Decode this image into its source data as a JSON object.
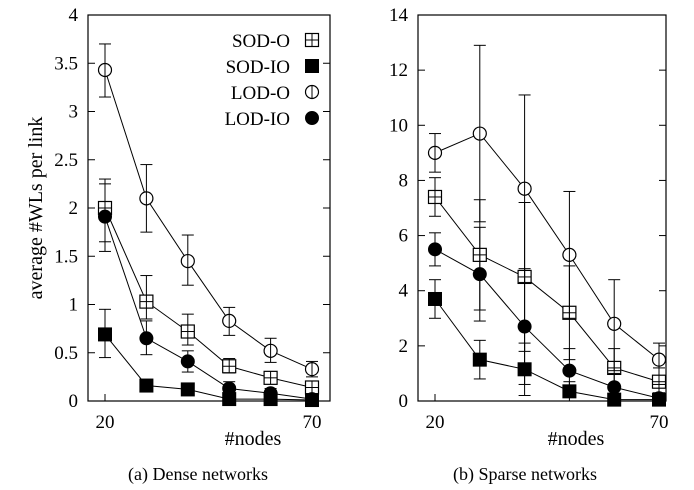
{
  "chart_data": [
    {
      "type": "line",
      "caption": "(a) Dense networks",
      "xlabel": "#nodes",
      "ylabel": "average #WLs per link",
      "xlim": [
        20,
        70
      ],
      "ylim": [
        0,
        4
      ],
      "x_ticks": [
        "20",
        "70"
      ],
      "y_ticks": [
        "0",
        "0.5",
        "1",
        "1.5",
        "2",
        "2.5",
        "3",
        "3.5",
        "4"
      ],
      "legend": {
        "placement": "top-right"
      },
      "x": [
        20,
        30,
        40,
        50,
        60,
        70
      ],
      "series": [
        {
          "name": "SOD-O",
          "marker": "square-open-cross",
          "values": [
            2.0,
            1.03,
            0.72,
            0.36,
            0.24,
            0.14
          ],
          "err_low": [
            1.65,
            0.85,
            0.58,
            0.29,
            0.18,
            0.08
          ],
          "err_high": [
            2.3,
            1.3,
            0.9,
            0.44,
            0.3,
            0.2
          ]
        },
        {
          "name": "SOD-IO",
          "marker": "square-filled",
          "values": [
            0.69,
            0.16,
            0.12,
            0.02,
            0.02,
            0.01
          ],
          "err_low": [
            0.45,
            0.1,
            0.08,
            0.0,
            0.0,
            0.0
          ],
          "err_high": [
            0.95,
            0.22,
            0.16,
            0.04,
            0.04,
            0.02
          ]
        },
        {
          "name": "LOD-O",
          "marker": "circle-open-bar",
          "values": [
            3.43,
            2.1,
            1.45,
            0.83,
            0.52,
            0.33
          ],
          "err_low": [
            3.15,
            1.75,
            1.2,
            0.68,
            0.4,
            0.25
          ],
          "err_high": [
            3.7,
            2.45,
            1.72,
            0.97,
            0.65,
            0.41
          ]
        },
        {
          "name": "LOD-IO",
          "marker": "circle-filled",
          "values": [
            1.91,
            0.65,
            0.41,
            0.13,
            0.08,
            0.02
          ],
          "err_low": [
            1.55,
            0.48,
            0.3,
            0.07,
            0.03,
            0.0
          ],
          "err_high": [
            2.25,
            0.83,
            0.52,
            0.2,
            0.13,
            0.05
          ]
        }
      ]
    },
    {
      "type": "line",
      "caption": "(b) Sparse networks",
      "xlabel": "#nodes",
      "ylabel": "",
      "xlim": [
        20,
        70
      ],
      "ylim": [
        0,
        14
      ],
      "x_ticks": [
        "20",
        "70"
      ],
      "y_ticks": [
        "0",
        "2",
        "4",
        "6",
        "8",
        "10",
        "12",
        "14"
      ],
      "x": [
        20,
        30,
        40,
        50,
        60,
        70
      ],
      "series": [
        {
          "name": "SOD-O",
          "marker": "square-open-cross",
          "values": [
            7.4,
            5.3,
            4.5,
            3.2,
            1.2,
            0.7
          ],
          "err_low": [
            6.7,
            3.3,
            1.8,
            1.5,
            0.5,
            0.2
          ],
          "err_high": [
            8.1,
            7.3,
            7.2,
            4.9,
            1.9,
            1.2
          ]
        },
        {
          "name": "SOD-IO",
          "marker": "square-filled",
          "values": [
            3.7,
            1.5,
            1.15,
            0.35,
            0.05,
            0.05
          ],
          "err_low": [
            3.0,
            0.8,
            0.2,
            0.0,
            0.0,
            0.0
          ],
          "err_high": [
            4.4,
            2.2,
            2.1,
            0.7,
            0.1,
            0.1
          ]
        },
        {
          "name": "LOD-O",
          "marker": "circle-open-bar",
          "values": [
            9.0,
            9.7,
            7.7,
            5.3,
            2.8,
            1.5
          ],
          "err_low": [
            8.3,
            6.5,
            4.3,
            3.0,
            1.1,
            0.6
          ],
          "err_high": [
            9.7,
            12.9,
            11.1,
            7.6,
            4.4,
            2.1
          ]
        },
        {
          "name": "LOD-IO",
          "marker": "circle-filled",
          "values": [
            5.5,
            4.6,
            2.7,
            1.1,
            0.5,
            0.1
          ],
          "err_low": [
            4.9,
            2.9,
            0.6,
            0.2,
            0.0,
            0.0
          ],
          "err_high": [
            6.1,
            6.3,
            4.8,
            1.9,
            1.0,
            0.3
          ]
        }
      ]
    }
  ]
}
